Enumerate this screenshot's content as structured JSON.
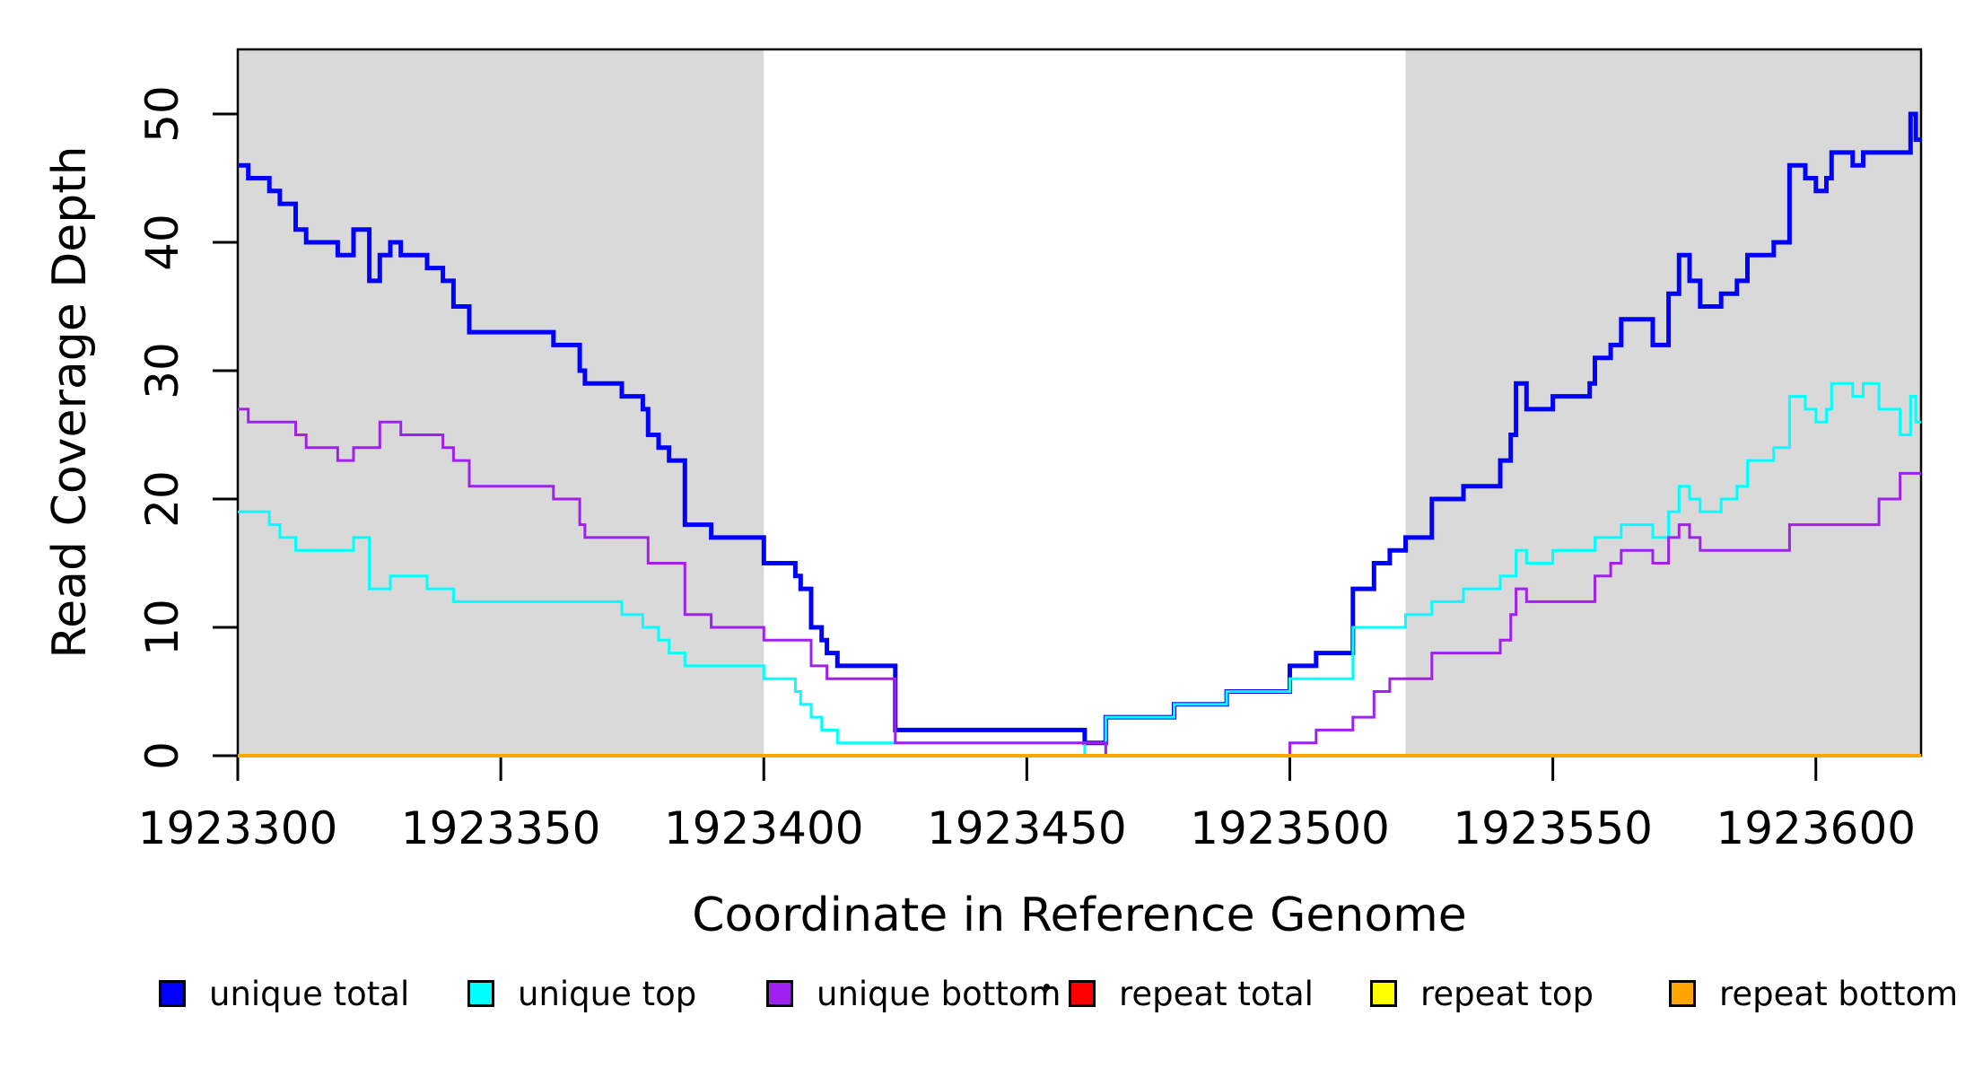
{
  "figure": {
    "kind": "read-coverage-step-plot",
    "background": "#ffffff"
  },
  "axes": {
    "x": {
      "label": "Coordinate in Reference Genome",
      "ticks": [
        1923300,
        1923350,
        1923400,
        1923450,
        1923500,
        1923550,
        1923600
      ],
      "lim": [
        1923300,
        1923620
      ]
    },
    "y": {
      "label": "Read Coverage Depth",
      "ticks": [
        0,
        10,
        20,
        30,
        40,
        50
      ],
      "lim": [
        0,
        55
      ]
    }
  },
  "legend": {
    "position": "bottom",
    "artifact_dot": "·",
    "items": [
      {
        "label": "unique total",
        "color": "#0000ff"
      },
      {
        "label": "unique top",
        "color": "#00ffff"
      },
      {
        "label": "unique bottom",
        "color": "#a020f0"
      },
      {
        "label": "repeat total",
        "color": "#ff0000"
      },
      {
        "label": "repeat top",
        "color": "#ffff00"
      },
      {
        "label": "repeat bottom",
        "color": "#ffa500"
      }
    ]
  },
  "chart_data": {
    "type": "line",
    "subtype": "step",
    "title": "",
    "xlabel": "Coordinate in Reference Genome",
    "ylabel": "Read Coverage Depth",
    "xlim": [
      1923300,
      1923620
    ],
    "ylim": [
      0,
      55
    ],
    "grid": false,
    "legend_position": "bottom",
    "shaded_regions": [
      {
        "x0": 1923300,
        "x1": 1923400,
        "color": "#d9d9d9"
      },
      {
        "x0": 1923522,
        "x1": 1923620,
        "color": "#d9d9d9"
      }
    ],
    "series": [
      {
        "name": "unique total",
        "color": "#0000ff",
        "width": 5,
        "points": [
          [
            1923300,
            46
          ],
          [
            1923302,
            45
          ],
          [
            1923306,
            44
          ],
          [
            1923308,
            43
          ],
          [
            1923311,
            41
          ],
          [
            1923313,
            40
          ],
          [
            1923319,
            39
          ],
          [
            1923322,
            41
          ],
          [
            1923325,
            37
          ],
          [
            1923327,
            39
          ],
          [
            1923329,
            40
          ],
          [
            1923331,
            39
          ],
          [
            1923336,
            38
          ],
          [
            1923339,
            37
          ],
          [
            1923341,
            35
          ],
          [
            1923344,
            33
          ],
          [
            1923360,
            32
          ],
          [
            1923365,
            30
          ],
          [
            1923366,
            29
          ],
          [
            1923373,
            28
          ],
          [
            1923377,
            27
          ],
          [
            1923378,
            25
          ],
          [
            1923380,
            24
          ],
          [
            1923382,
            23
          ],
          [
            1923385,
            18
          ],
          [
            1923390,
            17
          ],
          [
            1923400,
            15
          ],
          [
            1923406,
            14
          ],
          [
            1923407,
            13
          ],
          [
            1923409,
            10
          ],
          [
            1923411,
            9
          ],
          [
            1923412,
            8
          ],
          [
            1923414,
            7
          ],
          [
            1923425,
            2
          ],
          [
            1923461,
            1
          ],
          [
            1923465,
            3
          ],
          [
            1923478,
            4
          ],
          [
            1923488,
            5
          ],
          [
            1923500,
            7
          ],
          [
            1923505,
            8
          ],
          [
            1923512,
            13
          ],
          [
            1923516,
            15
          ],
          [
            1923519,
            16
          ],
          [
            1923522,
            17
          ],
          [
            1923527,
            20
          ],
          [
            1923533,
            21
          ],
          [
            1923540,
            23
          ],
          [
            1923542,
            25
          ],
          [
            1923543,
            29
          ],
          [
            1923545,
            27
          ],
          [
            1923550,
            28
          ],
          [
            1923557,
            29
          ],
          [
            1923558,
            31
          ],
          [
            1923561,
            32
          ],
          [
            1923563,
            34
          ],
          [
            1923569,
            32
          ],
          [
            1923572,
            36
          ],
          [
            1923574,
            39
          ],
          [
            1923576,
            37
          ],
          [
            1923578,
            35
          ],
          [
            1923582,
            36
          ],
          [
            1923585,
            37
          ],
          [
            1923587,
            39
          ],
          [
            1923592,
            40
          ],
          [
            1923595,
            46
          ],
          [
            1923598,
            45
          ],
          [
            1923600,
            44
          ],
          [
            1923602,
            45
          ],
          [
            1923603,
            47
          ],
          [
            1923607,
            46
          ],
          [
            1923609,
            47
          ],
          [
            1923616,
            47
          ],
          [
            1923618,
            50
          ],
          [
            1923619,
            48
          ]
        ]
      },
      {
        "name": "unique top",
        "color": "#00ffff",
        "width": 3,
        "points": [
          [
            1923300,
            19
          ],
          [
            1923306,
            18
          ],
          [
            1923308,
            17
          ],
          [
            1923311,
            16
          ],
          [
            1923322,
            17
          ],
          [
            1923325,
            13
          ],
          [
            1923329,
            14
          ],
          [
            1923336,
            13
          ],
          [
            1923341,
            12
          ],
          [
            1923373,
            11
          ],
          [
            1923377,
            10
          ],
          [
            1923380,
            9
          ],
          [
            1923382,
            8
          ],
          [
            1923385,
            7
          ],
          [
            1923400,
            6
          ],
          [
            1923406,
            5
          ],
          [
            1923407,
            4
          ],
          [
            1923409,
            3
          ],
          [
            1923411,
            2
          ],
          [
            1923414,
            1
          ],
          [
            1923461,
            0
          ],
          [
            1923465,
            3
          ],
          [
            1923478,
            4
          ],
          [
            1923488,
            5
          ],
          [
            1923500,
            6
          ],
          [
            1923512,
            10
          ],
          [
            1923522,
            11
          ],
          [
            1923527,
            12
          ],
          [
            1923533,
            13
          ],
          [
            1923540,
            14
          ],
          [
            1923543,
            16
          ],
          [
            1923545,
            15
          ],
          [
            1923550,
            16
          ],
          [
            1923558,
            17
          ],
          [
            1923563,
            18
          ],
          [
            1923569,
            17
          ],
          [
            1923572,
            19
          ],
          [
            1923574,
            21
          ],
          [
            1923576,
            20
          ],
          [
            1923578,
            19
          ],
          [
            1923582,
            20
          ],
          [
            1923585,
            21
          ],
          [
            1923587,
            23
          ],
          [
            1923592,
            24
          ],
          [
            1923595,
            28
          ],
          [
            1923598,
            27
          ],
          [
            1923600,
            26
          ],
          [
            1923602,
            27
          ],
          [
            1923603,
            29
          ],
          [
            1923607,
            28
          ],
          [
            1923609,
            29
          ],
          [
            1923612,
            27
          ],
          [
            1923616,
            25
          ],
          [
            1923618,
            28
          ],
          [
            1923619,
            26
          ]
        ]
      },
      {
        "name": "unique bottom",
        "color": "#a020f0",
        "width": 3,
        "points": [
          [
            1923300,
            27
          ],
          [
            1923302,
            26
          ],
          [
            1923311,
            25
          ],
          [
            1923313,
            24
          ],
          [
            1923319,
            23
          ],
          [
            1923322,
            24
          ],
          [
            1923327,
            26
          ],
          [
            1923331,
            25
          ],
          [
            1923339,
            24
          ],
          [
            1923341,
            23
          ],
          [
            1923344,
            21
          ],
          [
            1923360,
            20
          ],
          [
            1923365,
            18
          ],
          [
            1923366,
            17
          ],
          [
            1923378,
            15
          ],
          [
            1923385,
            11
          ],
          [
            1923390,
            10
          ],
          [
            1923400,
            9
          ],
          [
            1923409,
            7
          ],
          [
            1923412,
            6
          ],
          [
            1923425,
            1
          ],
          [
            1923465,
            0
          ],
          [
            1923500,
            1
          ],
          [
            1923505,
            2
          ],
          [
            1923512,
            3
          ],
          [
            1923516,
            5
          ],
          [
            1923519,
            6
          ],
          [
            1923527,
            8
          ],
          [
            1923540,
            9
          ],
          [
            1923542,
            11
          ],
          [
            1923543,
            13
          ],
          [
            1923545,
            12
          ],
          [
            1923558,
            14
          ],
          [
            1923561,
            15
          ],
          [
            1923563,
            16
          ],
          [
            1923569,
            15
          ],
          [
            1923572,
            17
          ],
          [
            1923574,
            18
          ],
          [
            1923576,
            17
          ],
          [
            1923578,
            16
          ],
          [
            1923595,
            18
          ],
          [
            1923612,
            20
          ],
          [
            1923616,
            22
          ]
        ]
      },
      {
        "name": "repeat total",
        "color": "#ff0000",
        "width": 3,
        "points": [
          [
            1923300,
            0
          ]
        ]
      },
      {
        "name": "repeat top",
        "color": "#ffff00",
        "width": 3,
        "points": [
          [
            1923300,
            0
          ]
        ]
      },
      {
        "name": "repeat bottom",
        "color": "#ffa500",
        "width": 4,
        "points": [
          [
            1923300,
            0
          ]
        ]
      }
    ]
  }
}
